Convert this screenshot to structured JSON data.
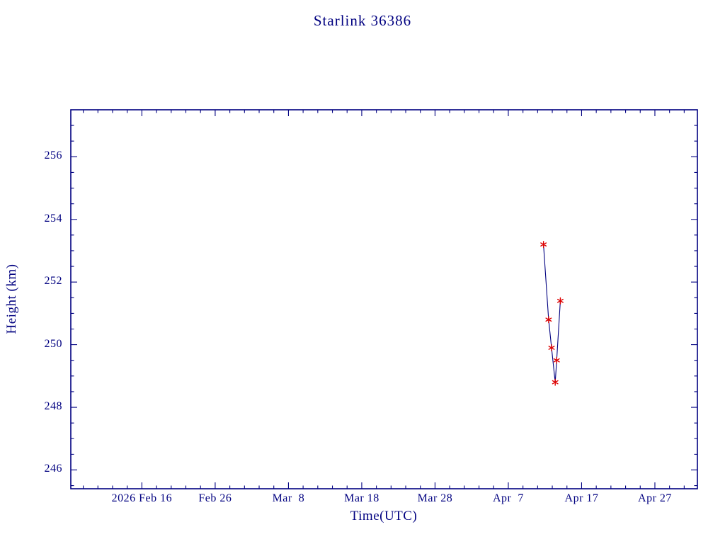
{
  "colors": {
    "axis": "#000080",
    "text": "#000080",
    "line": "#000080",
    "marker": "#dd0000",
    "background": "#ffffff"
  },
  "chart_data": {
    "type": "line",
    "title": "Starlink 36386",
    "xlabel": "Time(UTC)",
    "ylabel": "Height (km)",
    "x_unit": "days since 2026 Feb 16",
    "xlim": [
      -9.7,
      75.8
    ],
    "ylim": [
      245.4,
      257.5
    ],
    "grid": false,
    "legend": "none",
    "x_ticks": [
      {
        "value": 0,
        "label": "2026 Feb 16"
      },
      {
        "value": 10,
        "label": "Feb 26"
      },
      {
        "value": 20,
        "label": "Mar  8"
      },
      {
        "value": 30,
        "label": "Mar 18"
      },
      {
        "value": 40,
        "label": "Mar 28"
      },
      {
        "value": 50,
        "label": "Apr  7"
      },
      {
        "value": 60,
        "label": "Apr 17"
      },
      {
        "value": 70,
        "label": "Apr 27"
      }
    ],
    "y_ticks": [
      {
        "value": 246,
        "label": "246"
      },
      {
        "value": 248,
        "label": "248"
      },
      {
        "value": 250,
        "label": "250"
      },
      {
        "value": 252,
        "label": "252"
      },
      {
        "value": 254,
        "label": "254"
      },
      {
        "value": 256,
        "label": "256"
      }
    ],
    "x_minor_step": 2,
    "y_minor_step": 0.5,
    "series": [
      {
        "name": "height",
        "marker": "asterisk",
        "line_color": "#000080",
        "marker_color": "#dd0000",
        "points": [
          {
            "x": 54.8,
            "y": 253.2
          },
          {
            "x": 55.5,
            "y": 250.8
          },
          {
            "x": 55.9,
            "y": 249.9
          },
          {
            "x": 56.4,
            "y": 248.8
          },
          {
            "x": 56.6,
            "y": 249.5
          },
          {
            "x": 57.1,
            "y": 251.4
          }
        ]
      }
    ]
  }
}
